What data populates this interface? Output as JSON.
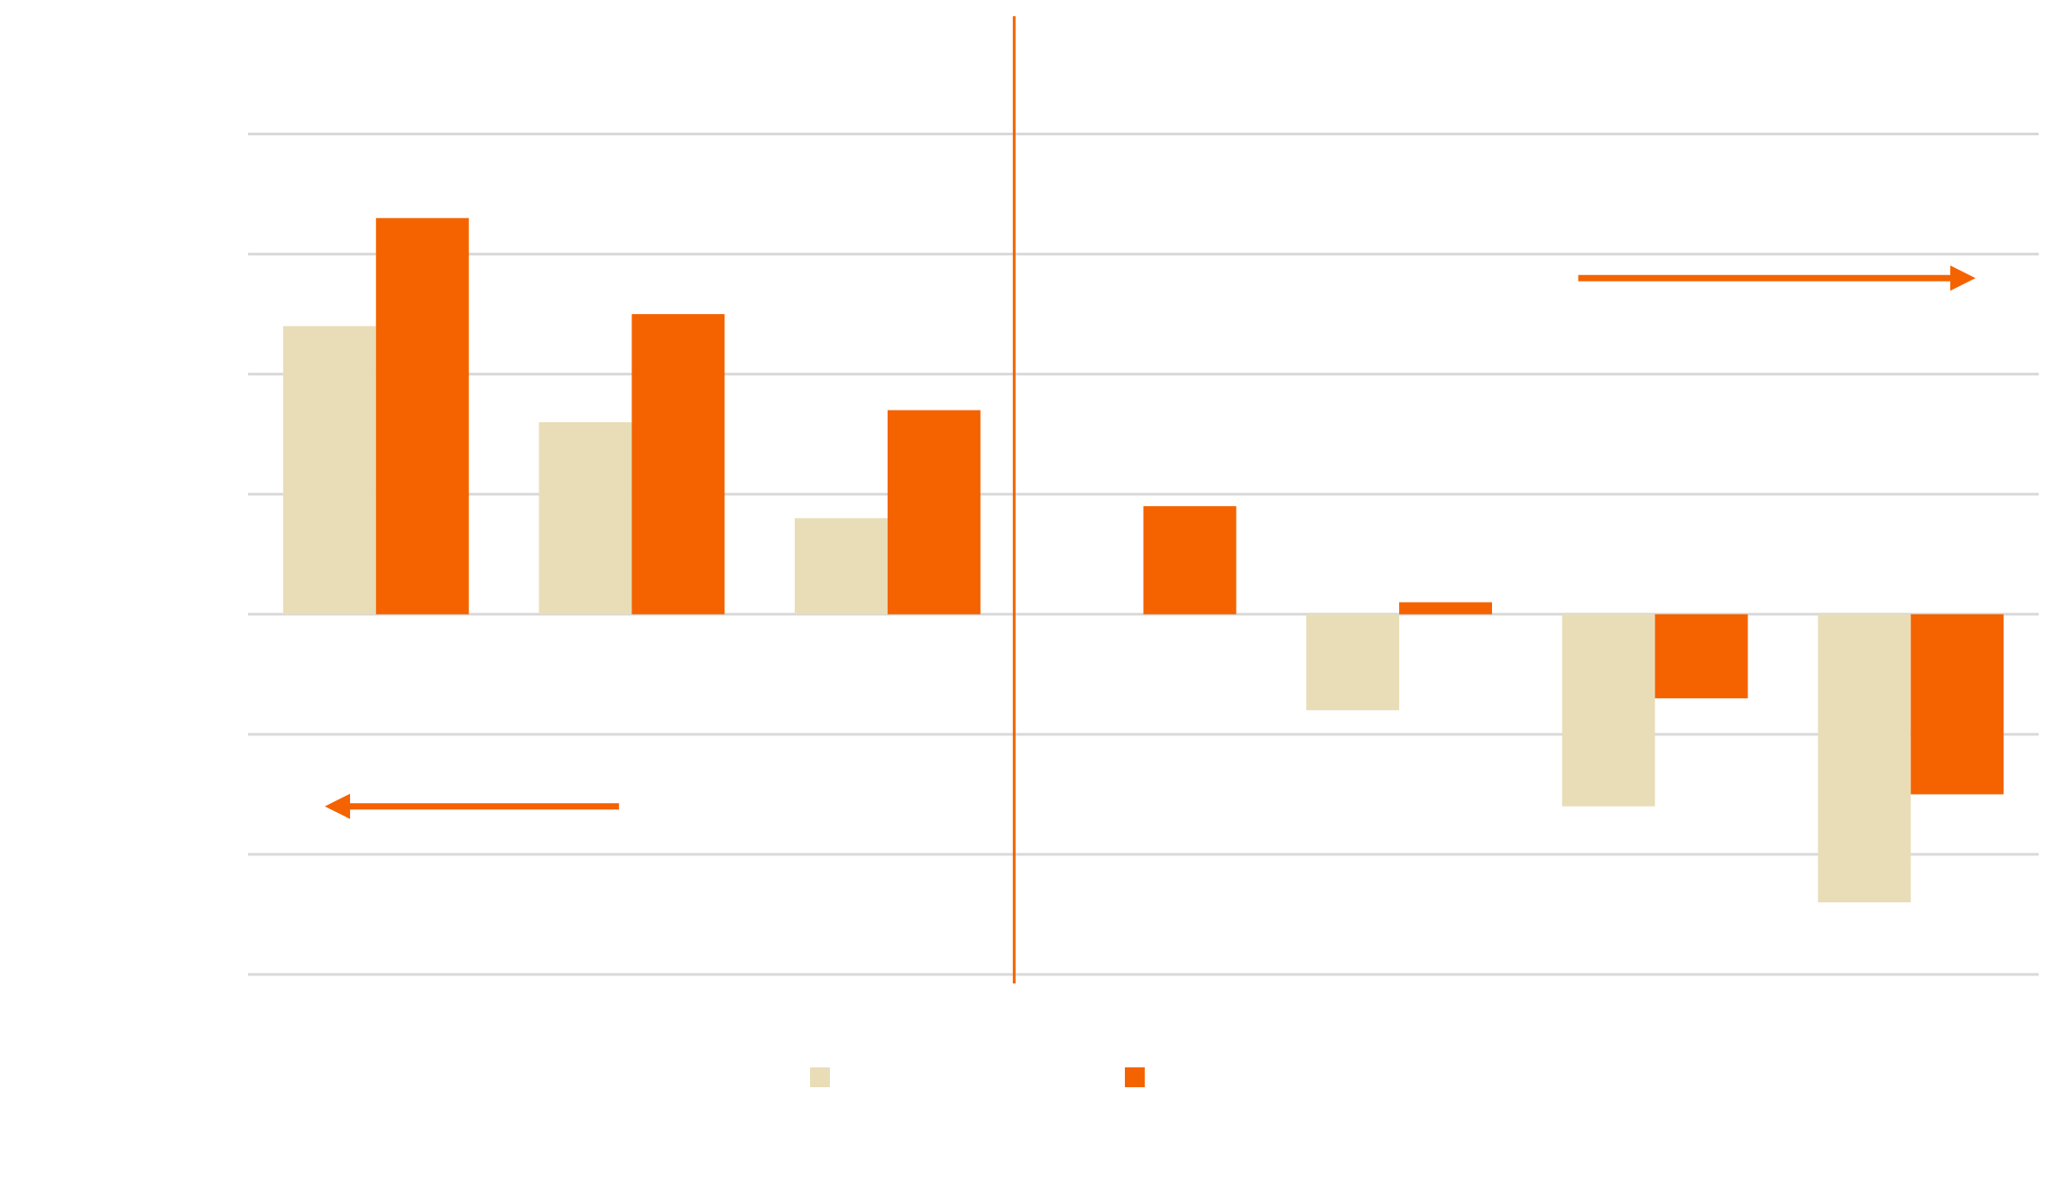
{
  "chart_data": {
    "type": "bar",
    "title": "",
    "xlabel": "",
    "ylabel": "",
    "categories": [
      "",
      "",
      "",
      "",
      "",
      "",
      ""
    ],
    "ylim": [
      -3,
      4.5
    ],
    "grid": true,
    "legend_position": "bottom",
    "series": [
      {
        "name": "",
        "color": "#e9ddb8",
        "values": [
          2.4,
          1.6,
          0.8,
          null,
          -0.8,
          -1.6,
          -2.4
        ]
      },
      {
        "name": "",
        "color": "#f46300",
        "values": [
          3.3,
          2.5,
          1.7,
          0.9,
          0.1,
          -0.7,
          -1.5
        ]
      }
    ],
    "divider": {
      "position_between_categories": [
        2,
        3
      ],
      "color": "#f46300"
    },
    "arrows": [
      {
        "direction": "left",
        "color": "#f46300",
        "y_value": -1.6
      },
      {
        "direction": "right",
        "color": "#f46300",
        "y_value": 2.8
      }
    ]
  }
}
